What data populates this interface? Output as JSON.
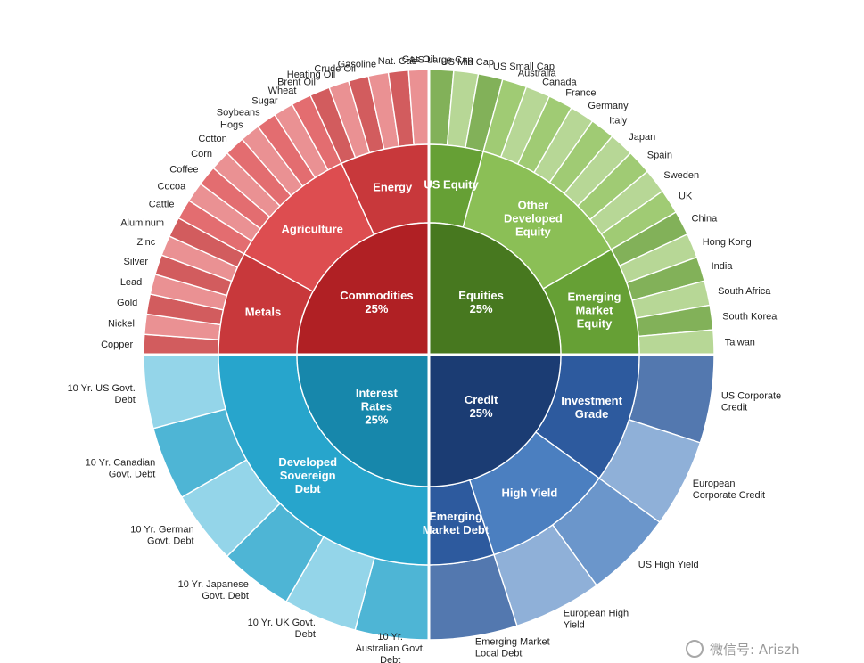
{
  "colors": {
    "commodities": [
      "#b02024",
      "#c8383b",
      "#dd4d50"
    ],
    "equities": [
      "#47781f",
      "#66a035",
      "#8bbf56"
    ],
    "interest_rates": [
      "#1787ab",
      "#27a5cc",
      "#52bcdc"
    ],
    "credit": [
      "#1b3c73",
      "#2d5a9e",
      "#4b7fc0"
    ]
  },
  "chart_data": {
    "type": "sunburst",
    "quadrants": [
      {
        "id": "commodities",
        "label": "Commodities",
        "share": "25%",
        "mid": [
          {
            "label": "Metals",
            "leaves": [
              "Copper",
              "Nickel",
              "Gold",
              "Lead",
              "Silver",
              "Zinc",
              "Aluminum"
            ]
          },
          {
            "label": "Agriculture",
            "leaves": [
              "Cattle",
              "Cocoa",
              "Coffee",
              "Corn",
              "Cotton",
              "Hogs",
              "Soybeans",
              "Sugar",
              "Wheat"
            ]
          },
          {
            "label": "Energy",
            "leaves": [
              "Brent Oil",
              "Heating Oil",
              "Crude Oil",
              "Gasoline",
              "Nat. Gas",
              "Gas Oil"
            ]
          }
        ]
      },
      {
        "id": "equities",
        "label": "Equities",
        "share": "25%",
        "mid": [
          {
            "label": "US Equity",
            "leaves": [
              "US Large Cap",
              "US Mid Cap",
              "US Small Cap"
            ]
          },
          {
            "label": "Other Developed Equity",
            "leaves": [
              "Australia",
              "Canada",
              "France",
              "Germany",
              "Italy",
              "Japan",
              "Spain",
              "Sweden",
              "UK"
            ]
          },
          {
            "label": "Emerging Market Equity",
            "leaves": [
              "China",
              "Hong Kong",
              "India",
              "South Africa",
              "South Korea",
              "Taiwan"
            ]
          }
        ]
      },
      {
        "id": "credit",
        "label": "Credit",
        "share": "25%",
        "mid": [
          {
            "label": "Investment Grade",
            "leaves": [
              "US Corporate Credit",
              "European Corporate Credit"
            ]
          },
          {
            "label": "High Yield",
            "leaves": [
              "US High Yield",
              "European High Yield"
            ]
          },
          {
            "label": "Emerging Market Debt",
            "leaves": [
              "Emerging Market Local Debt"
            ]
          }
        ]
      },
      {
        "id": "interest_rates",
        "label": "Interest Rates",
        "share": "25%",
        "mid": [
          {
            "label": "Developed Sovereign Debt",
            "leaves": [
              "10 Yr. Australian Govt. Debt",
              "10 Yr. UK Govt. Debt",
              "10 Yr. Japanese Govt. Debt",
              "10 Yr. German Govt. Debt",
              "10 Yr. Canadian Govt. Debt",
              "10 Yr. US Govt. Debt"
            ]
          }
        ]
      }
    ]
  },
  "watermark": "微信号: Ariszh"
}
